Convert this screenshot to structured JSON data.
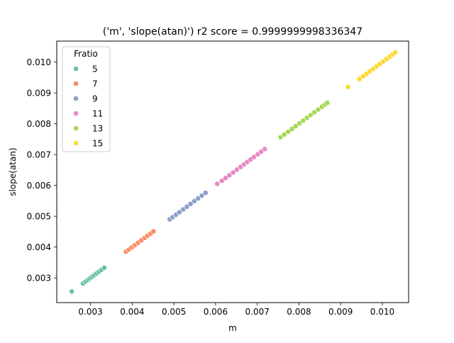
{
  "chart_data": {
    "type": "scatter",
    "title": "('m', 'slope(atan)') r2 score = 0.9999999998336347",
    "xlabel": "m",
    "ylabel": "slope(atan)",
    "xlim": [
      0.00219,
      0.01063
    ],
    "ylim": [
      0.0022,
      0.01068
    ],
    "x_ticks": [
      0.003,
      0.004,
      0.005,
      0.006,
      0.007,
      0.008,
      0.009,
      0.01
    ],
    "x_tick_labels": [
      "0.003",
      "0.004",
      "0.005",
      "0.006",
      "0.007",
      "0.008",
      "0.009",
      "0.010"
    ],
    "y_ticks": [
      0.003,
      0.004,
      0.005,
      0.006,
      0.007,
      0.008,
      0.009,
      0.01
    ],
    "y_tick_labels": [
      "0.003",
      "0.004",
      "0.005",
      "0.006",
      "0.007",
      "0.008",
      "0.009",
      "0.010"
    ],
    "grid": false,
    "legend": {
      "title": "Fratio",
      "placement": "top-left"
    },
    "series": [
      {
        "name": "5",
        "color": "#66c2a5",
        "x": [
          0.00255,
          0.00282,
          0.00288,
          0.00293,
          0.00298,
          0.00303,
          0.00308,
          0.00314,
          0.0032,
          0.00326,
          0.00333
        ],
        "y": [
          0.00256,
          0.00282,
          0.00288,
          0.00293,
          0.00298,
          0.00303,
          0.00308,
          0.00314,
          0.0032,
          0.00326,
          0.00333
        ]
      },
      {
        "name": "7",
        "color": "#fc8d62",
        "x": [
          0.00385,
          0.00392,
          0.00399,
          0.00406,
          0.00414,
          0.00422,
          0.0043,
          0.00437,
          0.00444,
          0.00451
        ],
        "y": [
          0.00385,
          0.00392,
          0.00399,
          0.00406,
          0.00414,
          0.00422,
          0.0043,
          0.00437,
          0.00444,
          0.00451
        ]
      },
      {
        "name": "9",
        "color": "#8da0cb",
        "x": [
          0.0049,
          0.00497,
          0.00505,
          0.00513,
          0.00522,
          0.00531,
          0.0054,
          0.00549,
          0.00558,
          0.00567,
          0.00576
        ],
        "y": [
          0.0049,
          0.00497,
          0.00505,
          0.00513,
          0.00522,
          0.00531,
          0.0054,
          0.00549,
          0.00558,
          0.00567,
          0.00576
        ]
      },
      {
        "name": "11",
        "color": "#e78ac3",
        "x": [
          0.00604,
          0.00615,
          0.00624,
          0.00633,
          0.00642,
          0.00651,
          0.0066,
          0.00668,
          0.00676,
          0.00684,
          0.00692,
          0.00701,
          0.00709,
          0.00718
        ],
        "y": [
          0.00605,
          0.00615,
          0.00624,
          0.00633,
          0.00642,
          0.00651,
          0.0066,
          0.00668,
          0.00676,
          0.00684,
          0.00692,
          0.00701,
          0.00709,
          0.00718
        ]
      },
      {
        "name": "13",
        "color": "#a6d854",
        "x": [
          0.00756,
          0.00765,
          0.00774,
          0.00783,
          0.00792,
          0.00801,
          0.0081,
          0.00819,
          0.00828,
          0.00837,
          0.00846,
          0.00855,
          0.00862,
          0.00868
        ],
        "y": [
          0.00756,
          0.00765,
          0.00774,
          0.00783,
          0.00792,
          0.00801,
          0.0081,
          0.00819,
          0.00828,
          0.00837,
          0.00846,
          0.00855,
          0.00862,
          0.00868
        ]
      },
      {
        "name": "15",
        "color": "#ffd92f",
        "x": [
          0.00918,
          0.00945,
          0.00954,
          0.00962,
          0.0097,
          0.00978,
          0.00986,
          0.00994,
          0.01002,
          0.0101,
          0.01018,
          0.01025,
          0.01031
        ],
        "y": [
          0.00919,
          0.00945,
          0.00954,
          0.00962,
          0.0097,
          0.00978,
          0.00986,
          0.00994,
          0.01002,
          0.0101,
          0.01018,
          0.01025,
          0.01031
        ]
      }
    ]
  }
}
